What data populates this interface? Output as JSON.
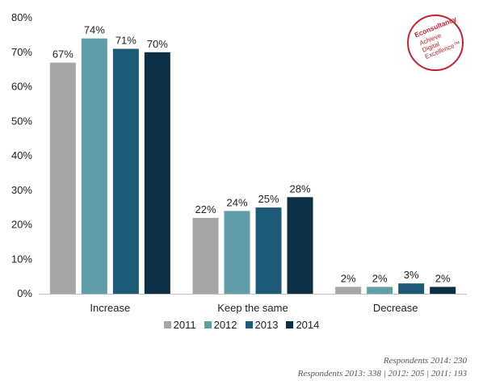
{
  "chart_data": {
    "type": "bar",
    "categories": [
      "Increase",
      "Keep the same",
      "Decrease"
    ],
    "series": [
      {
        "name": "2011",
        "values": [
          67,
          22,
          2
        ],
        "color": "#a6a6a6"
      },
      {
        "name": "2012",
        "values": [
          74,
          24,
          2
        ],
        "color": "#5f9ea8"
      },
      {
        "name": "2013",
        "values": [
          71,
          25,
          3
        ],
        "color": "#1c5a78"
      },
      {
        "name": "2014",
        "values": [
          70,
          28,
          2
        ],
        "color": "#0d2f45"
      }
    ],
    "value_suffix": "%",
    "ylim": [
      0,
      80
    ],
    "yticks": [
      "0%",
      "10%",
      "20%",
      "30%",
      "40%",
      "50%",
      "60%",
      "70%",
      "80%"
    ],
    "grid": false,
    "legend_position": "bottom"
  },
  "logo": {
    "brand": "Econsultancy",
    "tagline": [
      "Achieve",
      "Digital",
      "Excellence™"
    ]
  },
  "footnotes": {
    "line1": "Respondents 2014: 230",
    "line2": "Respondents 2013: 338 | 2012: 205 | 2011: 193"
  }
}
